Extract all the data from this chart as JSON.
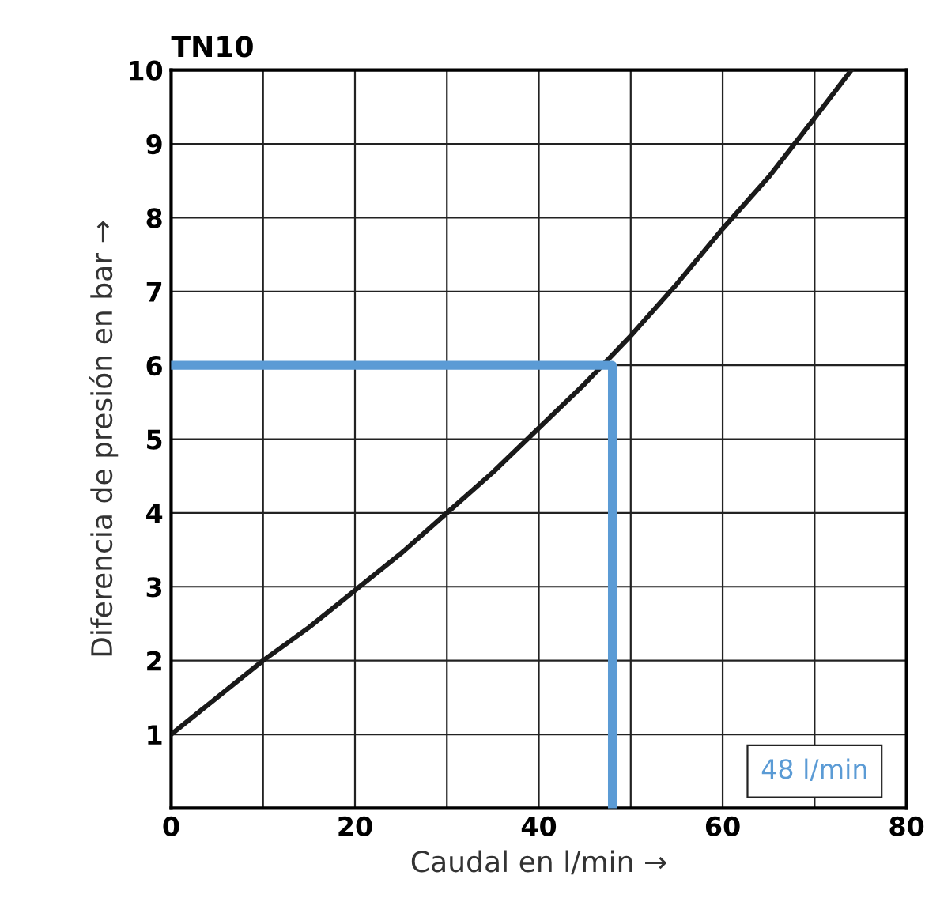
{
  "chart_data": {
    "type": "line",
    "title": "TN10",
    "xlabel": "Caudal en l/min →",
    "ylabel": "Diferencia de presión en bar →",
    "xlim": [
      0,
      80
    ],
    "ylim": [
      0,
      10
    ],
    "xticks": [
      0,
      {
        "value": 10,
        "label": null
      },
      20,
      {
        "value": 30,
        "label": null
      },
      40,
      {
        "value": 50,
        "label": null
      },
      60,
      {
        "value": 70,
        "label": null
      },
      80
    ],
    "yticks": [
      {
        "value": 0,
        "label": null
      },
      1,
      2,
      3,
      4,
      5,
      6,
      7,
      8,
      9,
      10
    ],
    "grid": true,
    "legend": false,
    "marker": "none",
    "line_style": "solid",
    "annotations": [
      "48 l/min"
    ],
    "series": [
      {
        "color": "#1a1a1a",
        "x": [
          0,
          5,
          10,
          15,
          20,
          25,
          30,
          35,
          40,
          45,
          50,
          55,
          60,
          65,
          70,
          74
        ],
        "values": [
          1,
          1.5,
          2.0,
          2.45,
          2.95,
          3.45,
          4.0,
          4.55,
          5.15,
          5.75,
          6.4,
          7.1,
          7.85,
          8.55,
          9.35,
          10
        ]
      },
      {
        "color": "#5b9bd5",
        "x": [
          0,
          48,
          48
        ],
        "values": [
          6,
          6,
          0
        ]
      }
    ]
  }
}
